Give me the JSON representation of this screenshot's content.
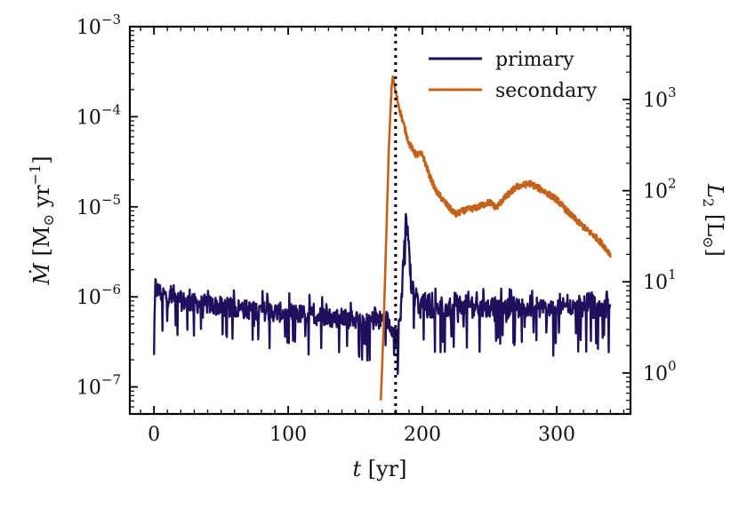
{
  "chart_data": {
    "type": "line",
    "xlabel": {
      "var": "t",
      "unit": " [yr]"
    },
    "ylabel_left": {
      "var": "Ṁ",
      "unit_pre": " [M",
      "unit_sub": "⊙",
      "unit_mid": " yr",
      "unit_sup": "−1",
      "unit_post": "]"
    },
    "ylabel_right": {
      "var": "L",
      "var_sub": "2",
      "unit_pre": " [L",
      "unit_sub": "⊙",
      "unit_post": "]"
    },
    "xlim": [
      -18,
      355
    ],
    "ylim_left_log10": [
      -7.3,
      -3
    ],
    "ylim_right_log10": [
      -0.45,
      3.8
    ],
    "x_ticks": [
      {
        "value": 0,
        "label": "0"
      },
      {
        "value": 100,
        "label": "100"
      },
      {
        "value": 200,
        "label": "200"
      },
      {
        "value": 300,
        "label": "300"
      }
    ],
    "y_left_ticks": [
      {
        "exp": -7,
        "base": "10",
        "sup": "−7"
      },
      {
        "exp": -6,
        "base": "10",
        "sup": "−6"
      },
      {
        "exp": -5,
        "base": "10",
        "sup": "−5"
      },
      {
        "exp": -4,
        "base": "10",
        "sup": "−4"
      },
      {
        "exp": -3,
        "base": "10",
        "sup": "−3"
      }
    ],
    "y_right_ticks": [
      {
        "exp": 0,
        "base": "10",
        "sup": "0"
      },
      {
        "exp": 1,
        "base": "10",
        "sup": "1"
      },
      {
        "exp": 2,
        "base": "10",
        "sup": "2"
      },
      {
        "exp": 3,
        "base": "10",
        "sup": "3"
      }
    ],
    "vline_x": 180,
    "legend_position": "top-right",
    "series": [
      {
        "name": "primary",
        "axis": "left",
        "color": "#1f0f5c",
        "x": [
          0,
          1,
          2,
          5,
          10,
          20,
          30,
          40,
          50,
          60,
          70,
          80,
          90,
          100,
          110,
          120,
          130,
          140,
          150,
          160,
          165,
          170,
          172,
          175,
          178,
          180,
          182,
          184,
          186,
          188,
          190,
          192,
          195,
          200,
          210,
          220,
          230,
          240,
          250,
          260,
          270,
          280,
          290,
          300,
          310,
          320,
          330,
          340
        ],
        "values": [
          2.5e-07,
          1.3e-06,
          1.2e-06,
          1.1e-06,
          1e-06,
          9e-07,
          8.5e-07,
          8.2e-07,
          7.8e-07,
          7.5e-07,
          7.2e-07,
          7e-07,
          6.8e-07,
          6.6e-07,
          6.4e-07,
          6.2e-07,
          6e-07,
          5.8e-07,
          5.6e-07,
          5.5e-07,
          5.5e-07,
          5.5e-07,
          5.8e-07,
          5.2e-07,
          4.6e-07,
          3.5e-07,
          4.5e-07,
          7e-07,
          3e-06,
          8e-06,
          3e-06,
          1.2e-06,
          9e-07,
          7.5e-07,
          7.5e-07,
          7.5e-07,
          7.5e-07,
          7.5e-07,
          7.5e-07,
          7.5e-07,
          7.5e-07,
          7.5e-07,
          7.5e-07,
          7.5e-07,
          7.5e-07,
          7.5e-07,
          7.5e-07,
          7.5e-07
        ]
      },
      {
        "name": "secondary",
        "axis": "right",
        "color": "#c4621a",
        "x": [
          169,
          171,
          173,
          175,
          177,
          178,
          180,
          182,
          185,
          190,
          195,
          200,
          205,
          210,
          215,
          220,
          225,
          230,
          240,
          250,
          255,
          260,
          270,
          280,
          290,
          300,
          310,
          320,
          330,
          335,
          340
        ],
        "values": [
          0.5,
          3,
          30,
          300,
          1400,
          1800,
          1200,
          900,
          600,
          330,
          250,
          250,
          150,
          100,
          80,
          65,
          55,
          60,
          65,
          75,
          65,
          80,
          110,
          120,
          100,
          80,
          55,
          40,
          30,
          25,
          20
        ]
      }
    ]
  }
}
